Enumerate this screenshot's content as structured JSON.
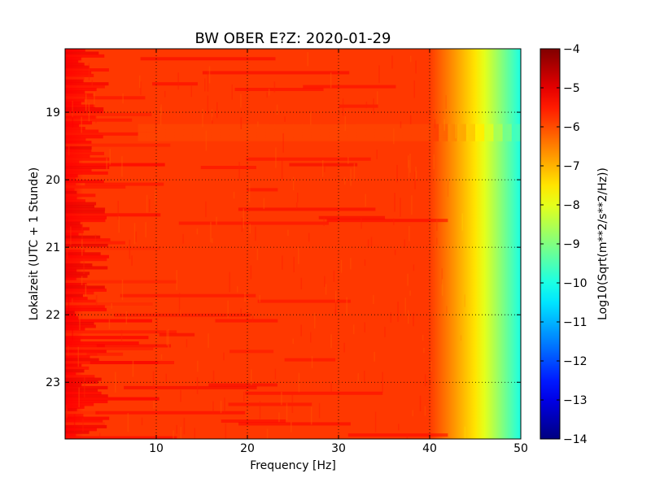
{
  "chart_data": {
    "type": "heatmap",
    "title": "BW OBER E?Z: 2020-01-29",
    "xlabel": "Frequency [Hz]",
    "ylabel": "Lokalzeit (UTC + 1 Stunde)",
    "xlim": [
      0,
      50
    ],
    "ylim": [
      18.06,
      23.84
    ],
    "x_ticks": [
      10,
      20,
      30,
      40,
      50
    ],
    "y_ticks": [
      19,
      20,
      21,
      22,
      23
    ],
    "grid": true,
    "colorbar": {
      "label": "Log10(Sqrt(m**2/s**2/Hz))",
      "range": [
        -14,
        -4
      ],
      "ticks": [
        -4,
        -5,
        -6,
        -7,
        -8,
        -9,
        -10,
        -11,
        -12,
        -13,
        -14
      ],
      "colormap": "jet"
    },
    "approx_levels": {
      "below_40_hz": -5.8,
      "near_45_hz": -7.5,
      "at_50_hz": -10.0
    },
    "band_feature": {
      "time_range": [
        19.15,
        19.4
      ],
      "freq_range": [
        8,
        50
      ],
      "peak_freq": 27,
      "peak_level": -4.6
    }
  }
}
